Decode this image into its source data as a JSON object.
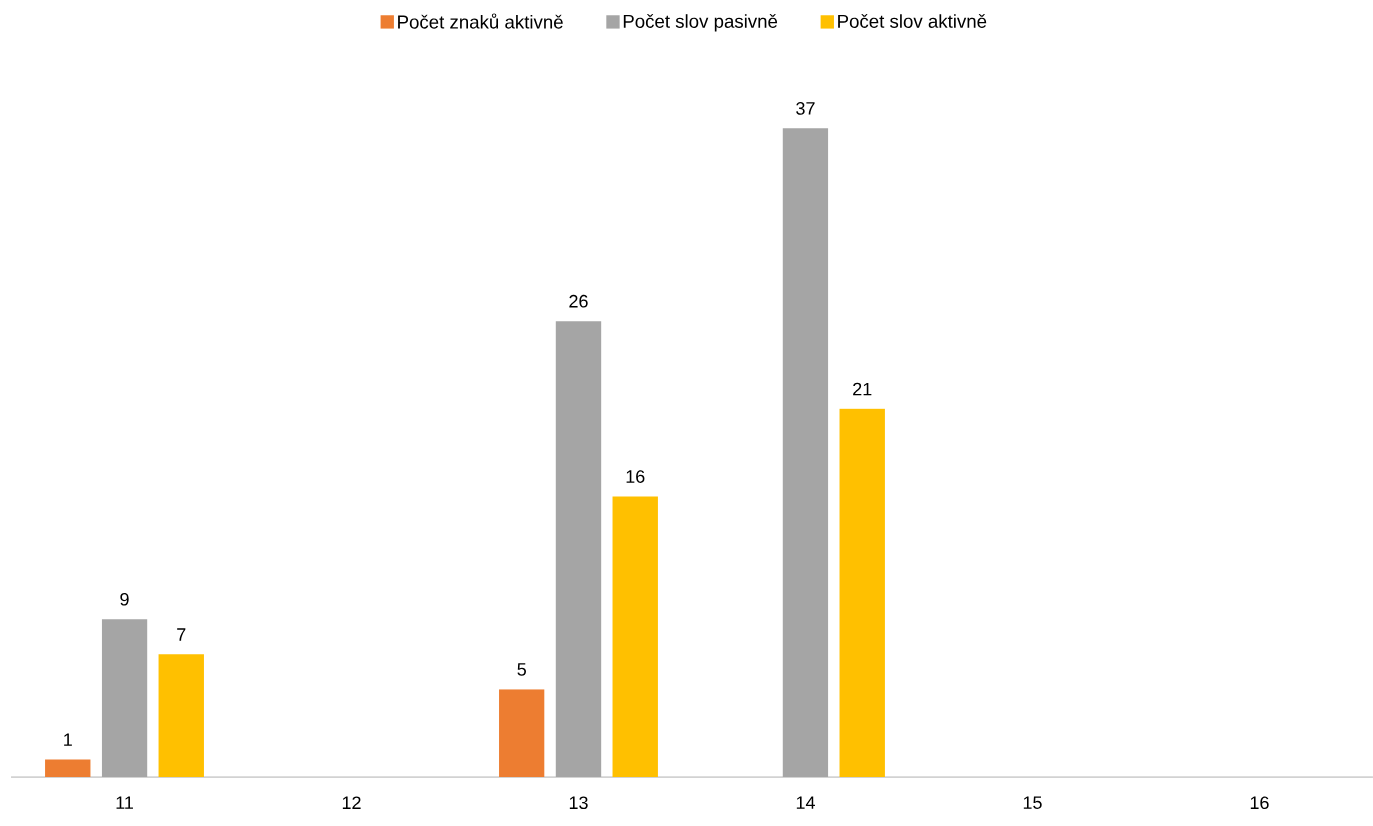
{
  "chart_data": {
    "type": "bar",
    "categories": [
      "11",
      "12",
      "13",
      "14",
      "15",
      "16"
    ],
    "series": [
      {
        "name": "Počet znaků aktivně",
        "color": "#ed7d31",
        "values": [
          1,
          null,
          5,
          null,
          null,
          null
        ]
      },
      {
        "name": "Počet slov pasivně",
        "color": "#a5a5a5",
        "values": [
          9,
          null,
          26,
          37,
          null,
          null
        ]
      },
      {
        "name": "Počet slov aktivně",
        "color": "#ffc000",
        "values": [
          7,
          null,
          16,
          21,
          null,
          null
        ]
      }
    ],
    "legend": "top",
    "data_labels": true
  }
}
